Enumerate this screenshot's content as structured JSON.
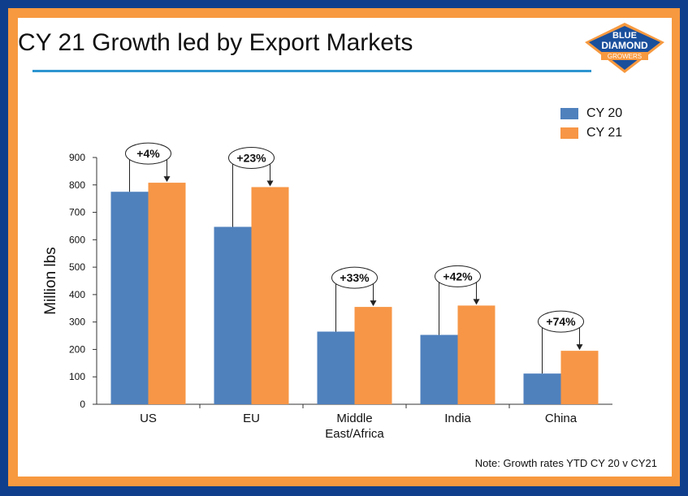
{
  "slide": {
    "title": "CY 21 Growth led by Export Markets",
    "note": "Note: Growth rates YTD CY 20 v CY21",
    "logo": {
      "line1": "BLUE",
      "line2": "DIAMOND",
      "line3": "GROWERS",
      "icon": "blue-diamond-growers-logo"
    }
  },
  "colors": {
    "cy20": "#4f81bd",
    "cy21": "#f79646",
    "frame_outer": "#0f3f8c",
    "frame_inner": "#f7993f",
    "rule": "#2e95cf"
  },
  "chart_data": {
    "type": "bar",
    "title": "",
    "ylabel": "Million lbs",
    "xlabel": "",
    "ylim": [
      0,
      900
    ],
    "yticks": [
      0,
      100,
      200,
      300,
      400,
      500,
      600,
      700,
      800,
      900
    ],
    "categories": [
      [
        "US"
      ],
      [
        "EU"
      ],
      [
        "Middle",
        "East/Africa"
      ],
      [
        "India"
      ],
      [
        "China"
      ]
    ],
    "series": [
      {
        "name": "CY 20",
        "values": [
          775,
          647,
          265,
          253,
          112
        ]
      },
      {
        "name": "CY 21",
        "values": [
          808,
          792,
          355,
          360,
          195
        ]
      }
    ],
    "growth_labels": [
      "+4%",
      "+23%",
      "+33%",
      "+42%",
      "+74%"
    ],
    "legend_position": "top-right",
    "grid": false
  }
}
